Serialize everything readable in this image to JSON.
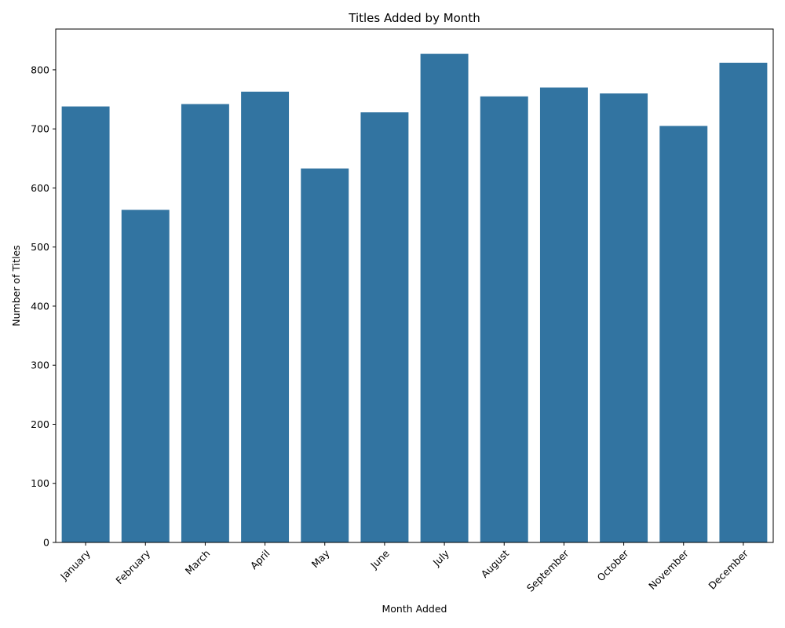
{
  "colors": {
    "bar": "#3274a1",
    "axis": "#000000",
    "background": "#ffffff"
  },
  "chart_data": {
    "type": "bar",
    "title": "Titles Added by Month",
    "xlabel": "Month Added",
    "ylabel": "Number of Titles",
    "categories": [
      "January",
      "February",
      "March",
      "April",
      "May",
      "June",
      "July",
      "August",
      "September",
      "October",
      "November",
      "December"
    ],
    "values": [
      738,
      563,
      742,
      763,
      633,
      728,
      827,
      755,
      770,
      760,
      705,
      812
    ],
    "ylim": [
      0,
      869
    ],
    "yticks": [
      0,
      100,
      200,
      300,
      400,
      500,
      600,
      700,
      800
    ],
    "grid": false,
    "legend": "none"
  }
}
